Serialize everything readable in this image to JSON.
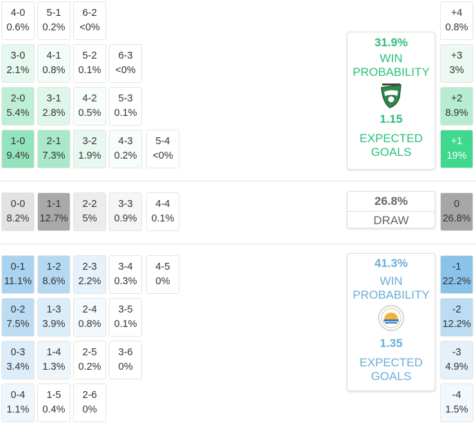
{
  "home": {
    "rows": [
      [
        {
          "s": "4-0",
          "p": "0.6%",
          "bg": "#ffffff"
        },
        {
          "s": "5-1",
          "p": "0.2%",
          "bg": "#ffffff"
        },
        {
          "s": "6-2",
          "p": "<0%",
          "bg": "#ffffff"
        }
      ],
      [
        {
          "s": "3-0",
          "p": "2.1%",
          "bg": "#e6f8ef"
        },
        {
          "s": "4-1",
          "p": "0.8%",
          "bg": "#f4fcf8"
        },
        {
          "s": "5-2",
          "p": "0.1%",
          "bg": "#ffffff"
        },
        {
          "s": "6-3",
          "p": "<0%",
          "bg": "#ffffff"
        }
      ],
      [
        {
          "s": "2-0",
          "p": "5.4%",
          "bg": "#bfeed6"
        },
        {
          "s": "3-1",
          "p": "2.8%",
          "bg": "#dff6ea"
        },
        {
          "s": "4-2",
          "p": "0.5%",
          "bg": "#f7fdfa"
        },
        {
          "s": "5-3",
          "p": "0.1%",
          "bg": "#ffffff"
        }
      ],
      [
        {
          "s": "1-0",
          "p": "9.4%",
          "bg": "#93e3bd"
        },
        {
          "s": "2-1",
          "p": "7.3%",
          "bg": "#aae8ca"
        },
        {
          "s": "3-2",
          "p": "1.9%",
          "bg": "#e6f8ef"
        },
        {
          "s": "4-3",
          "p": "0.2%",
          "bg": "#f7fdfa"
        },
        {
          "s": "5-4",
          "p": "<0%",
          "bg": "#ffffff"
        }
      ]
    ],
    "margins": [
      {
        "m": "+4",
        "p": "0.8%",
        "bg": "#ffffff"
      },
      {
        "m": "+3",
        "p": "3%",
        "bg": "#ecf9f2"
      },
      {
        "m": "+2",
        "p": "8.9%",
        "bg": "#b6ecd1"
      },
      {
        "m": "+1",
        "p": "19%",
        "bg": "#3fd98e",
        "fg": "#ffffff"
      }
    ],
    "card": {
      "pct": "31.9%",
      "win_label": "WIN\nPROBABILITY",
      "xg": "1.15",
      "xg_label": "EXPECTED\nGOALS"
    }
  },
  "draw": {
    "cells": [
      {
        "s": "0-0",
        "p": "8.2%",
        "bg": "#e2e2e2"
      },
      {
        "s": "1-1",
        "p": "12.7%",
        "bg": "#a9a9a9"
      },
      {
        "s": "2-2",
        "p": "5%",
        "bg": "#ececec"
      },
      {
        "s": "3-3",
        "p": "0.9%",
        "bg": "#f6f6f6"
      },
      {
        "s": "4-4",
        "p": "0.1%",
        "bg": "#ffffff"
      }
    ],
    "margin": {
      "m": "0",
      "p": "26.8%",
      "bg": "#a6a6a6"
    },
    "card": {
      "pct": "26.8%",
      "label": "DRAW"
    }
  },
  "away": {
    "rows": [
      [
        {
          "s": "0-1",
          "p": "11.1%",
          "bg": "#a9d3f0"
        },
        {
          "s": "1-2",
          "p": "8.6%",
          "bg": "#b6d9f2"
        },
        {
          "s": "2-3",
          "p": "2.2%",
          "bg": "#e6f2fb"
        },
        {
          "s": "3-4",
          "p": "0.3%",
          "bg": "#ffffff"
        },
        {
          "s": "4-5",
          "p": "0%",
          "bg": "#ffffff"
        }
      ],
      [
        {
          "s": "0-2",
          "p": "7.5%",
          "bg": "#bcdcf3"
        },
        {
          "s": "1-3",
          "p": "3.9%",
          "bg": "#dbedf9"
        },
        {
          "s": "2-4",
          "p": "0.8%",
          "bg": "#f4f9fd"
        },
        {
          "s": "3-5",
          "p": "0.1%",
          "bg": "#ffffff"
        }
      ],
      [
        {
          "s": "0-3",
          "p": "3.4%",
          "bg": "#dcedf9"
        },
        {
          "s": "1-4",
          "p": "1.3%",
          "bg": "#eef6fc"
        },
        {
          "s": "2-5",
          "p": "0.2%",
          "bg": "#ffffff"
        },
        {
          "s": "3-6",
          "p": "0%",
          "bg": "#ffffff"
        }
      ],
      [
        {
          "s": "0-4",
          "p": "1.1%",
          "bg": "#f0f7fc"
        },
        {
          "s": "1-5",
          "p": "0.4%",
          "bg": "#ffffff"
        },
        {
          "s": "2-6",
          "p": "0%",
          "bg": "#ffffff"
        }
      ]
    ],
    "margins": [
      {
        "m": "-1",
        "p": "22.2%",
        "bg": "#8ac3ea"
      },
      {
        "m": "-2",
        "p": "12.2%",
        "bg": "#bbdcf3"
      },
      {
        "m": "-3",
        "p": "4.9%",
        "bg": "#e4f1fa"
      },
      {
        "m": "-4",
        "p": "1.5%",
        "bg": "#f2f8fd"
      }
    ],
    "card": {
      "pct": "41.3%",
      "win_label": "WIN\nPROBABILITY",
      "xg": "1.35",
      "xg_label": "EXPECTED\nGOALS"
    }
  },
  "icons": {
    "home_logo": "home-team-crest-icon",
    "away_logo": "away-team-crest-icon"
  },
  "colors": {
    "home": "#2bbf7a",
    "away": "#6aaed6",
    "draw": "#666666"
  }
}
